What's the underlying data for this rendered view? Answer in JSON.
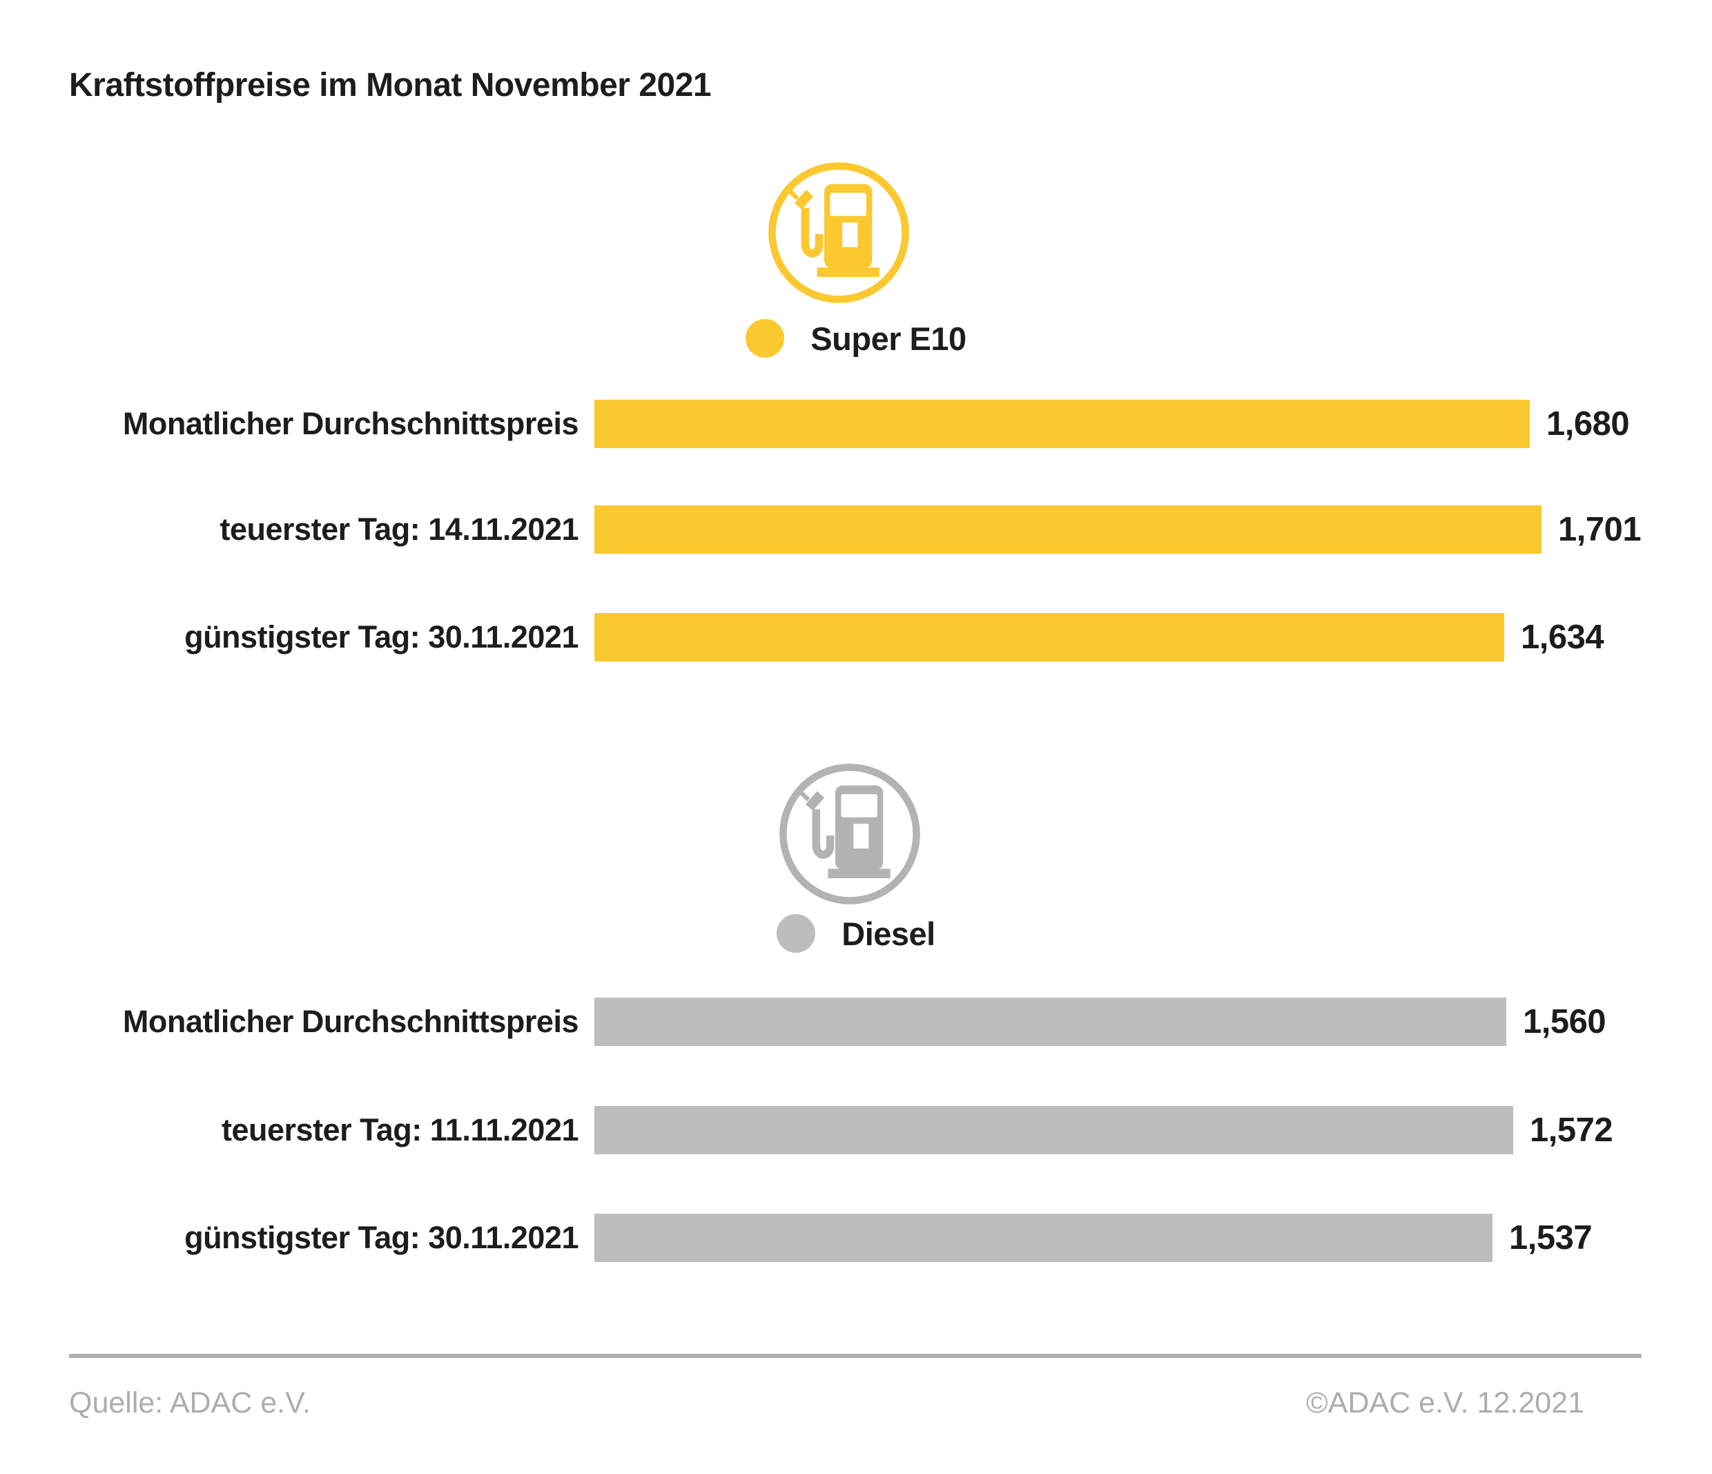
{
  "title": "Kraftstoffpreise im Monat November 2021",
  "chart_data": {
    "type": "bar",
    "orientation": "horizontal",
    "title": "Kraftstoffpreise im Monat November 2021",
    "value_format": "comma-decimal, three places (e.g. 1,680)",
    "legend_position": "above each bar group, centered",
    "grid": false,
    "groups": [
      {
        "name": "Super E10",
        "color": "#FCC82F",
        "icon": "fuel-pump-icon",
        "rows": [
          {
            "label": "Monatlicher Durchschnittspreis",
            "value": 1.68,
            "value_label": "1,680"
          },
          {
            "label": "teuerster Tag: 14.11.2021",
            "value": 1.701,
            "value_label": "1,701"
          },
          {
            "label": "günstigster Tag: 30.11.2021",
            "value": 1.634,
            "value_label": "1,634"
          }
        ]
      },
      {
        "name": "Diesel",
        "color": "#BDBDBD",
        "icon": "fuel-pump-icon",
        "rows": [
          {
            "label": "Monatlicher Durchschnittspreis",
            "value": 1.56,
            "value_label": "1,560"
          },
          {
            "label": "teuerster Tag: 11.11.2021",
            "value": 1.572,
            "value_label": "1,572"
          },
          {
            "label": "günstigster Tag: 30.11.2021",
            "value": 1.537,
            "value_label": "1,537"
          }
        ]
      }
    ]
  },
  "footer": {
    "source": "Quelle: ADAC e.V.",
    "copyright": "©ADAC e.V. 12.2021"
  },
  "colors": {
    "super_e10_yellow": "#FCC82F",
    "diesel_gray": "#BDBDBD",
    "icon_gray": "#B3B3B3",
    "text_dark": "#1D1D1B",
    "footer_gray": "#ADADAD",
    "divider_gray": "#B0B0B0"
  }
}
